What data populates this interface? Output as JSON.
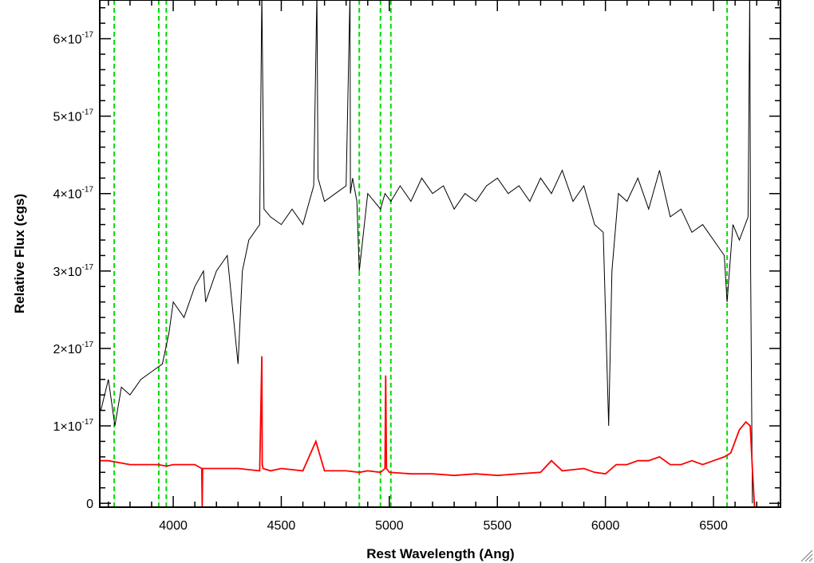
{
  "chart_data": {
    "type": "line",
    "xlabel": "Rest Wavelength (Ang)",
    "ylabel": "Relative Flux (cgs)",
    "xlim": [
      3660,
      6810
    ],
    "ylim": [
      -5e-19,
      6.5e-17
    ],
    "x_ticks": [
      {
        "value": 4000,
        "label": "4000"
      },
      {
        "value": 4500,
        "label": "4500"
      },
      {
        "value": 5000,
        "label": "5000"
      },
      {
        "value": 5500,
        "label": "5500"
      },
      {
        "value": 6000,
        "label": "6000"
      },
      {
        "value": 6500,
        "label": "6500"
      }
    ],
    "y_ticks": [
      {
        "value": 0,
        "mantissa": "0",
        "exponent": ""
      },
      {
        "value": 1e-17,
        "mantissa": "1×10",
        "exponent": "-17"
      },
      {
        "value": 2e-17,
        "mantissa": "2×10",
        "exponent": "-17"
      },
      {
        "value": 3e-17,
        "mantissa": "3×10",
        "exponent": "-17"
      },
      {
        "value": 4e-17,
        "mantissa": "4×10",
        "exponent": "-17"
      },
      {
        "value": 5e-17,
        "mantissa": "5×10",
        "exponent": "-17"
      },
      {
        "value": 6e-17,
        "mantissa": "6×10",
        "exponent": "-17"
      }
    ],
    "grid": false,
    "legend": "none",
    "series": [
      {
        "color": "#000000",
        "style": "solid",
        "x": [
          3665,
          3700,
          3730,
          3760,
          3800,
          3850,
          3900,
          3950,
          3980,
          4000,
          4050,
          4100,
          4140,
          4150,
          4200,
          4250,
          4300,
          4320,
          4350,
          4400,
          4410,
          4420,
          4450,
          4500,
          4550,
          4600,
          4650,
          4665,
          4670,
          4700,
          4750,
          4800,
          4818,
          4820,
          4830,
          4850,
          4861,
          4900,
          4959,
          4980,
          5007,
          5050,
          5100,
          5150,
          5200,
          5250,
          5300,
          5350,
          5400,
          5450,
          5500,
          5550,
          5600,
          5650,
          5700,
          5750,
          5800,
          5850,
          5900,
          5950,
          5990,
          6015,
          6030,
          6060,
          6100,
          6150,
          6200,
          6250,
          6300,
          6350,
          6400,
          6450,
          6500,
          6550,
          6563,
          6590,
          6620,
          6660,
          6668,
          6672,
          6680
        ],
        "y": [
          1.2e-17,
          1.6e-17,
          1e-17,
          1.5e-17,
          1.4e-17,
          1.6e-17,
          1.7e-17,
          1.8e-17,
          2.2e-17,
          2.6e-17,
          2.4e-17,
          2.8e-17,
          3e-17,
          2.6e-17,
          3e-17,
          3.2e-17,
          1.8e-17,
          3e-17,
          3.4e-17,
          3.6e-17,
          6.6e-17,
          3.8e-17,
          3.7e-17,
          3.6e-17,
          3.8e-17,
          3.6e-17,
          4.1e-17,
          6.6e-17,
          4.2e-17,
          3.9e-17,
          4e-17,
          4.1e-17,
          6.6e-17,
          4e-17,
          4.2e-17,
          3.9e-17,
          3e-17,
          4e-17,
          3.8e-17,
          4e-17,
          3.9e-17,
          4.1e-17,
          3.9e-17,
          4.2e-17,
          4e-17,
          4.1e-17,
          3.8e-17,
          4e-17,
          3.9e-17,
          4.1e-17,
          4.2e-17,
          4e-17,
          4.1e-17,
          3.9e-17,
          4.2e-17,
          4e-17,
          4.3e-17,
          3.9e-17,
          4.1e-17,
          3.6e-17,
          3.5e-17,
          1e-17,
          3e-17,
          4e-17,
          3.9e-17,
          4.2e-17,
          3.8e-17,
          4.3e-17,
          3.7e-17,
          3.8e-17,
          3.5e-17,
          3.6e-17,
          3.4e-17,
          3.2e-17,
          2.6e-17,
          3.6e-17,
          3.4e-17,
          3.7e-17,
          6.6e-17,
          3e-17,
          0.0
        ]
      },
      {
        "color": "#ff0000",
        "style": "solid",
        "x": [
          3660,
          3700,
          3800,
          3900,
          3930,
          3970,
          4000,
          4100,
          4132,
          4134,
          4136,
          4200,
          4300,
          4400,
          4410,
          4412,
          4416,
          4450,
          4500,
          4600,
          4660,
          4700,
          4800,
          4861,
          4900,
          4959,
          4980,
          4983,
          4987,
          5000,
          5100,
          5200,
          5300,
          5400,
          5500,
          5600,
          5700,
          5750,
          5800,
          5900,
          5950,
          6000,
          6050,
          6100,
          6150,
          6200,
          6250,
          6300,
          6350,
          6400,
          6450,
          6500,
          6550,
          6580,
          6600,
          6620,
          6650,
          6670,
          6680,
          6690,
          6810
        ],
        "y": [
          5.5e-18,
          5.5e-18,
          5e-18,
          5e-18,
          5e-18,
          4.8e-18,
          5e-18,
          5e-18,
          4.5e-18,
          -5e-19,
          4.5e-18,
          4.5e-18,
          4.5e-18,
          4.2e-18,
          1.9e-17,
          5e-18,
          4.5e-18,
          4.2e-18,
          4.5e-18,
          4.2e-18,
          8e-18,
          4.2e-18,
          4.2e-18,
          4e-18,
          4.2e-18,
          4e-18,
          4.5e-18,
          1.65e-17,
          4.5e-18,
          4e-18,
          3.8e-18,
          3.8e-18,
          3.6e-18,
          3.8e-18,
          3.6e-18,
          3.8e-18,
          4e-18,
          5.5e-18,
          4.2e-18,
          4.5e-18,
          4e-18,
          3.8e-18,
          5e-18,
          5e-18,
          5.5e-18,
          5.5e-18,
          6e-18,
          5e-18,
          5e-18,
          5.5e-18,
          5e-18,
          5.5e-18,
          6e-18,
          6.5e-18,
          8e-18,
          9.5e-18,
          1.05e-17,
          1e-17,
          4.5e-18,
          -5e-19,
          -5e-19
        ]
      }
    ],
    "reference_lines": {
      "color": "#00dd00",
      "style": "dashed",
      "x": [
        3727,
        3933,
        3968,
        4861,
        4959,
        5007,
        6563
      ]
    }
  }
}
